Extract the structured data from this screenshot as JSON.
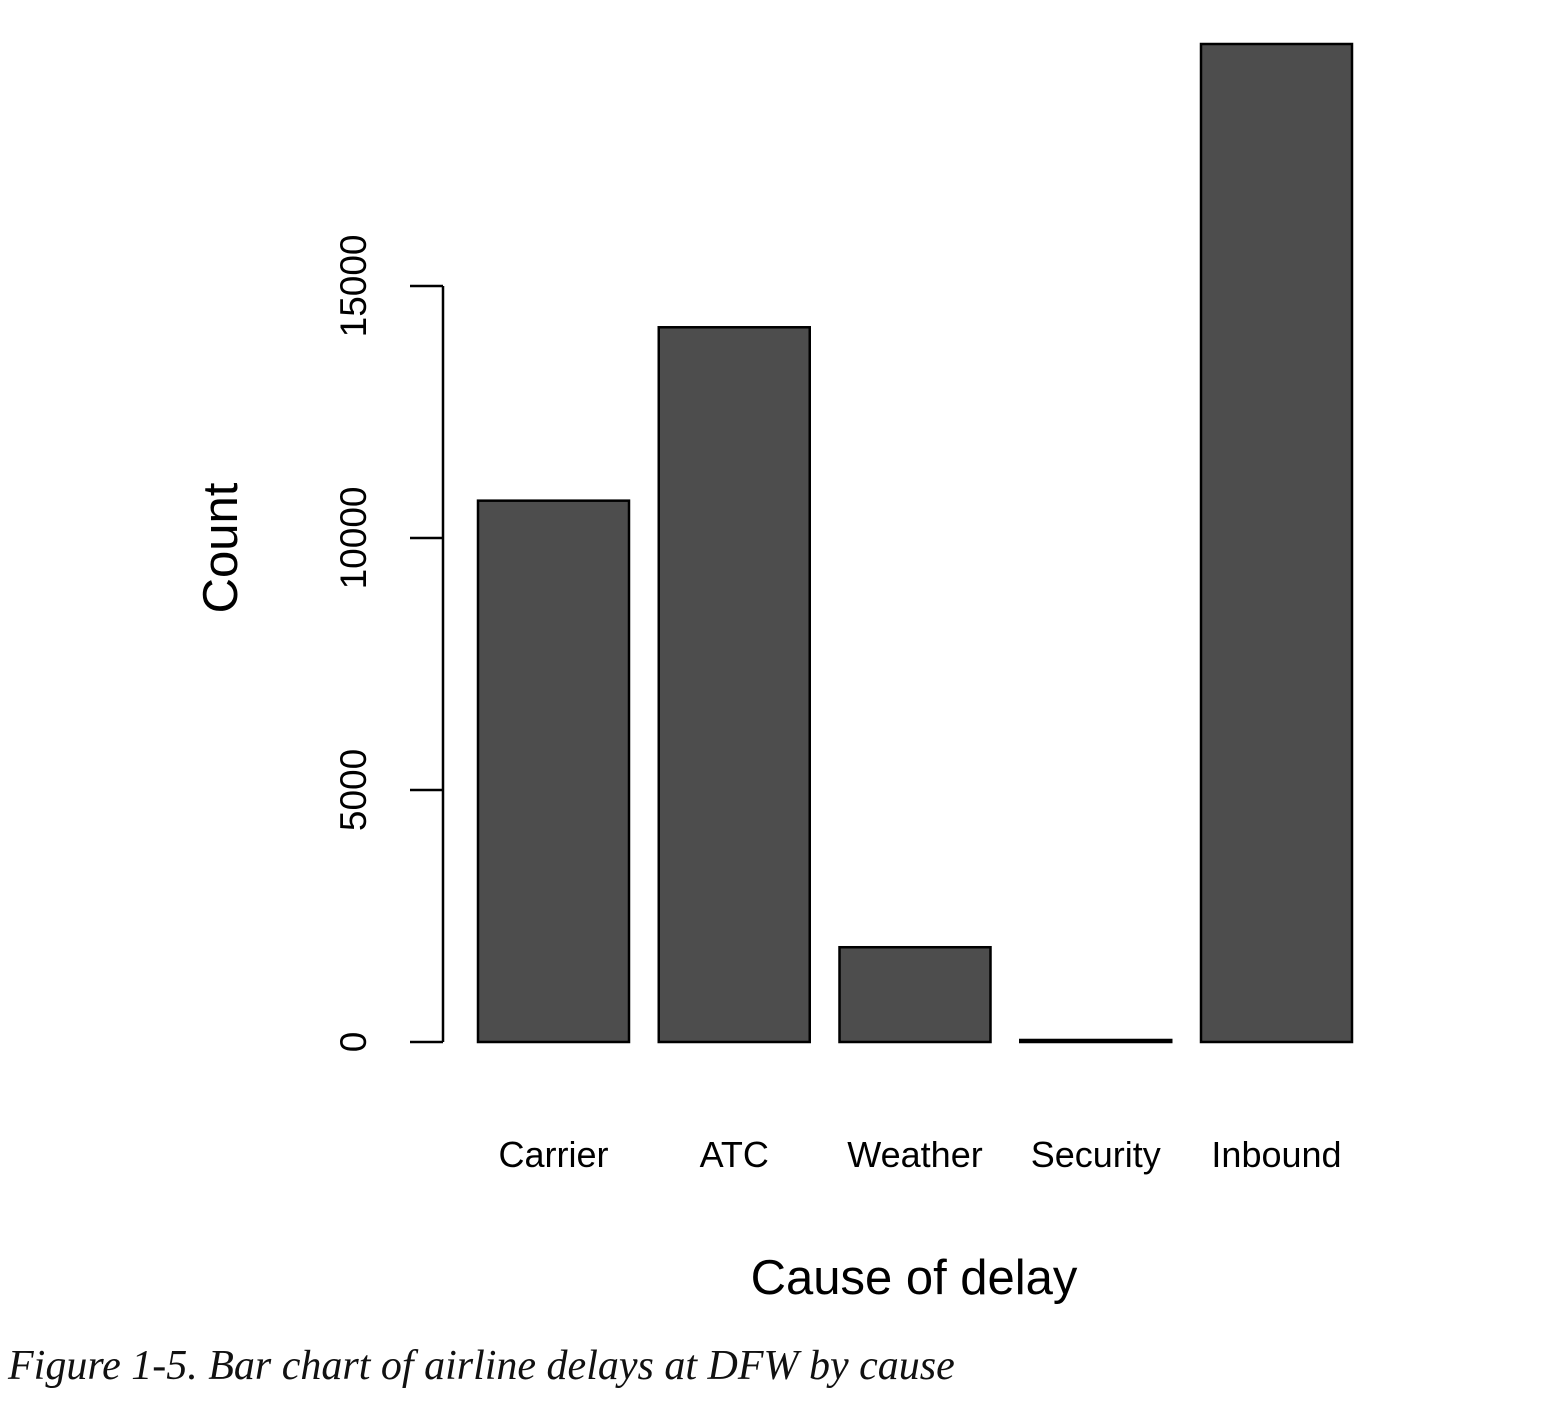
{
  "chart_data": {
    "type": "bar",
    "categories": [
      "Carrier",
      "ATC",
      "Weather",
      "Security",
      "Inbound"
    ],
    "values": [
      10740,
      14180,
      1880,
      40,
      19800
    ],
    "xlabel": "Cause of delay",
    "ylabel": "Count",
    "ylim": [
      0,
      19800
    ],
    "yticks": [
      0,
      5000,
      10000,
      15000
    ],
    "ytick_labels": [
      "0",
      "5000",
      "10000",
      "15000"
    ],
    "bar_color": "#4d4d4d",
    "bar_edge_color": "#000000",
    "grid": false,
    "legend": "none"
  },
  "caption": "Figure 1-5. Bar chart of airline delays at DFW by cause"
}
